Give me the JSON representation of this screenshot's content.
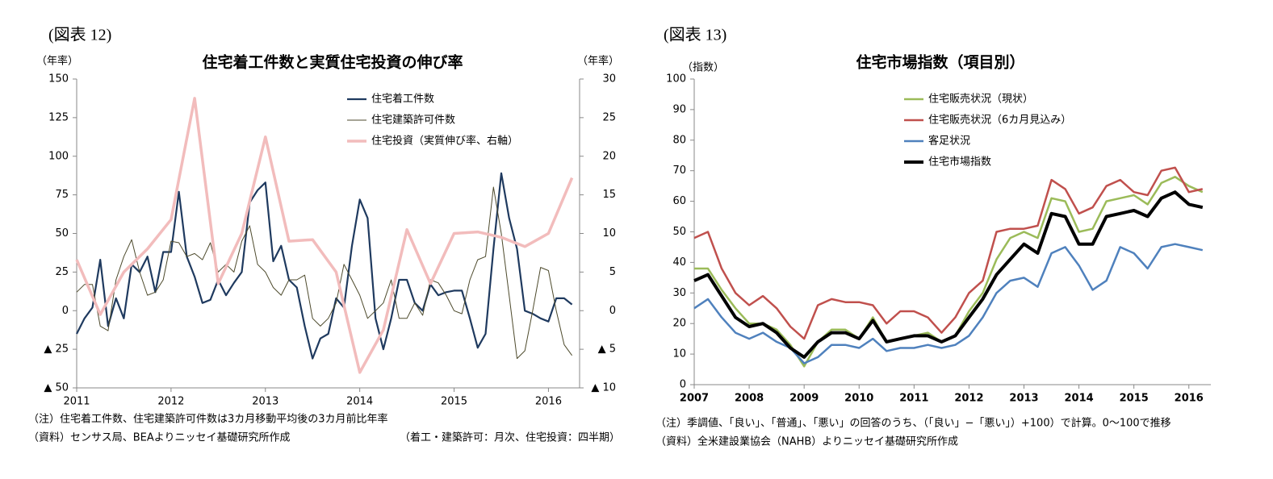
{
  "chart_data": [
    {
      "type": "line",
      "figure_label": "(図表 12)",
      "title": "住宅着工件数と実質住宅投資の伸び率",
      "y_label": "（年率）",
      "y2_label": "（年率）",
      "notes": [
        "（注）住宅着工件数、住宅建築許可件数は3カ月移動平均後の3カ月前比年率",
        "（資料）センサス局、BEAよりニッセイ基礎研究所作成",
        "（着工・建築許可：月次、住宅投資：四半期）"
      ],
      "legend": "upper center",
      "x": [
        2011,
        2011.083,
        2011.167,
        2011.25,
        2011.333,
        2011.417,
        2011.5,
        2011.583,
        2011.667,
        2011.75,
        2011.833,
        2011.917,
        2012,
        2012.083,
        2012.167,
        2012.25,
        2012.333,
        2012.417,
        2012.5,
        2012.583,
        2012.667,
        2012.75,
        2012.833,
        2012.917,
        2013,
        2013.083,
        2013.167,
        2013.25,
        2013.333,
        2013.417,
        2013.5,
        2013.583,
        2013.667,
        2013.75,
        2013.833,
        2013.917,
        2014,
        2014.083,
        2014.167,
        2014.25,
        2014.333,
        2014.417,
        2014.5,
        2014.583,
        2014.667,
        2014.75,
        2014.833,
        2014.917,
        2015,
        2015.083,
        2015.167,
        2015.25,
        2015.333,
        2015.417,
        2015.5,
        2015.583,
        2015.667,
        2015.75,
        2015.833,
        2015.917,
        2016,
        2016.083,
        2016.167,
        2016.25
      ],
      "series": [
        {
          "name": "住宅着工件数",
          "color": "#1f3a5f",
          "line_width": 2.2,
          "values": [
            -15,
            -5,
            2,
            33,
            -10,
            8,
            -5,
            30,
            25,
            35,
            12,
            38,
            38,
            77,
            35,
            22,
            5,
            7,
            20,
            10,
            18,
            25,
            70,
            78,
            83,
            32,
            42,
            20,
            15,
            -10,
            -31,
            -18,
            -15,
            8,
            2,
            42,
            72,
            60,
            -5,
            -25,
            -5,
            20,
            20,
            5,
            0,
            17,
            10,
            12,
            13,
            13,
            -5,
            -24,
            -15,
            40,
            89,
            60,
            40,
            0,
            -2,
            -5,
            -7,
            8,
            8,
            4
          ]
        },
        {
          "name": "住宅建築許可件数",
          "color": "#4d4a2c",
          "line_width": 1,
          "values": [
            12,
            17,
            17,
            -10,
            -13,
            20,
            35,
            46,
            25,
            10,
            12,
            20,
            45,
            44,
            35,
            37,
            33,
            44,
            25,
            30,
            25,
            45,
            55,
            30,
            25,
            15,
            10,
            20,
            20,
            23,
            -5,
            -10,
            -5,
            5,
            30,
            20,
            10,
            -5,
            0,
            5,
            20,
            -5,
            -5,
            5,
            -3,
            20,
            18,
            10,
            0,
            -2,
            20,
            33,
            35,
            80,
            50,
            10,
            -31,
            -26,
            0,
            28,
            26,
            0,
            -22,
            -29
          ]
        },
        {
          "name": "住宅投資（実質伸び率、右軸）",
          "color": "#f2bcbc",
          "line_width": 3.5,
          "axis": "y2",
          "x": [
            2011,
            2011.25,
            2011.5,
            2011.75,
            2012,
            2012.25,
            2012.5,
            2012.75,
            2013,
            2013.25,
            2013.5,
            2013.75,
            2014,
            2014.25,
            2014.5,
            2014.75,
            2015,
            2015.25,
            2015.5,
            2015.75,
            2016,
            2016.25
          ],
          "values": [
            6.6,
            -0.5,
            5,
            8,
            11.8,
            27.5,
            3.5,
            10,
            22.5,
            9,
            9.2,
            5,
            -8,
            -2.5,
            10.5,
            3.5,
            10,
            10.2,
            9.5,
            8.3,
            10,
            17.2
          ]
        }
      ],
      "xlim": [
        2011,
        2016.33
      ],
      "xticks": [
        2011,
        2012,
        2013,
        2014,
        2015,
        2016
      ],
      "ylim": [
        -50,
        150
      ],
      "yticks": [
        {
          "value": -50,
          "label": "▲ 50"
        },
        {
          "value": -25,
          "label": "▲ 25"
        },
        0,
        25,
        50,
        75,
        100,
        125,
        150
      ],
      "y2lim": [
        -10,
        30
      ],
      "y2ticks": [
        {
          "value": -10,
          "label": "▲ 10"
        },
        {
          "value": -5,
          "label": "▲ 5"
        },
        0,
        5,
        10,
        15,
        20,
        25,
        30
      ]
    },
    {
      "type": "line",
      "figure_label": "(図表 13)",
      "title": "住宅市場指数（項目別）",
      "y_label": "（指数）",
      "notes": [
        "（注）季調値、「良い」、「普通」、「悪い」の回答のうち、（「良い」−「悪い」）+100）で計算。0～100で推移",
        "（資料）全米建設業協会（NAHB）よりニッセイ基礎研究所作成"
      ],
      "legend": "upper center",
      "x": [
        2007,
        2007.25,
        2007.5,
        2007.75,
        2008,
        2008.25,
        2008.5,
        2008.75,
        2009,
        2009.25,
        2009.5,
        2009.75,
        2010,
        2010.25,
        2010.5,
        2010.75,
        2011,
        2011.25,
        2011.5,
        2011.75,
        2012,
        2012.25,
        2012.5,
        2012.75,
        2013,
        2013.25,
        2013.5,
        2013.75,
        2014,
        2014.25,
        2014.5,
        2014.75,
        2015,
        2015.25,
        2015.5,
        2015.75,
        2016,
        2016.25
      ],
      "series": [
        {
          "name": "住宅販売状況（現状）",
          "color": "#9bbb59",
          "line_width": 2.5,
          "values": [
            38,
            38,
            31,
            25,
            20,
            20,
            18,
            13,
            6,
            14,
            18,
            18,
            15,
            22,
            14,
            15,
            16,
            17,
            14,
            16,
            24,
            30,
            41,
            48,
            50,
            48,
            61,
            60,
            50,
            51,
            60,
            61,
            62,
            59,
            66,
            68,
            65,
            63
          ]
        },
        {
          "name": "住宅販売状況（6カ月見込み）",
          "color": "#c0504d",
          "line_width": 2.5,
          "values": [
            48,
            50,
            38,
            30,
            26,
            29,
            25,
            19,
            15,
            26,
            28,
            27,
            27,
            26,
            20,
            24,
            24,
            22,
            17,
            22,
            30,
            34,
            50,
            51,
            51,
            52,
            67,
            64,
            56,
            58,
            65,
            67,
            63,
            62,
            70,
            71,
            63,
            64
          ]
        },
        {
          "name": "客足状況",
          "color": "#4f81bd",
          "line_width": 2.5,
          "values": [
            25,
            28,
            22,
            17,
            15,
            17,
            14,
            12,
            7,
            9,
            13,
            13,
            12,
            15,
            11,
            12,
            12,
            13,
            12,
            13,
            16,
            22,
            30,
            34,
            35,
            32,
            43,
            45,
            39,
            31,
            34,
            45,
            43,
            38,
            45,
            46,
            45,
            44
          ]
        },
        {
          "name": "住宅市場指数",
          "color": "#000000",
          "line_width": 4,
          "values": [
            34,
            36,
            29,
            22,
            19,
            20,
            17,
            12,
            9,
            14,
            17,
            17,
            15,
            21,
            14,
            15,
            16,
            16,
            14,
            16,
            22,
            28,
            36,
            41,
            46,
            43,
            56,
            55,
            46,
            46,
            55,
            56,
            57,
            55,
            61,
            63,
            59,
            58
          ]
        }
      ],
      "xlim": [
        2007,
        2016.4
      ],
      "xticks": [
        2007,
        2008,
        2009,
        2010,
        2011,
        2012,
        2013,
        2014,
        2015,
        2016
      ],
      "ylim": [
        0,
        100
      ],
      "yticks": [
        0,
        10,
        20,
        30,
        40,
        50,
        60,
        70,
        80,
        90,
        100
      ]
    }
  ]
}
